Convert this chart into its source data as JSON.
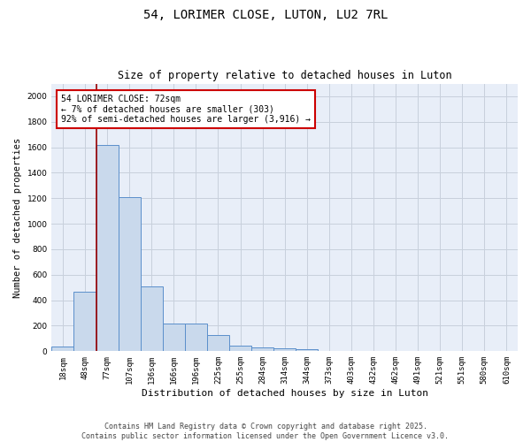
{
  "title": "54, LORIMER CLOSE, LUTON, LU2 7RL",
  "subtitle": "Size of property relative to detached houses in Luton",
  "xlabel": "Distribution of detached houses by size in Luton",
  "ylabel": "Number of detached properties",
  "bin_labels": [
    "18sqm",
    "48sqm",
    "77sqm",
    "107sqm",
    "136sqm",
    "166sqm",
    "196sqm",
    "225sqm",
    "255sqm",
    "284sqm",
    "314sqm",
    "344sqm",
    "373sqm",
    "403sqm",
    "432sqm",
    "462sqm",
    "491sqm",
    "521sqm",
    "551sqm",
    "580sqm",
    "610sqm"
  ],
  "bar_values": [
    35,
    465,
    1620,
    1210,
    510,
    215,
    215,
    130,
    45,
    30,
    20,
    15,
    0,
    0,
    0,
    0,
    0,
    0,
    0,
    0,
    0
  ],
  "bar_color": "#c9d9ec",
  "bar_edge_color": "#5b8fcb",
  "vline_color": "#990000",
  "annotation_text": "54 LORIMER CLOSE: 72sqm\n← 7% of detached houses are smaller (303)\n92% of semi-detached houses are larger (3,916) →",
  "annotation_box_color": "#ffffff",
  "annotation_box_edge": "#cc0000",
  "ylim": [
    0,
    2100
  ],
  "yticks": [
    0,
    200,
    400,
    600,
    800,
    1000,
    1200,
    1400,
    1600,
    1800,
    2000
  ],
  "grid_color": "#c8d0dc",
  "bg_color": "#e8eef8",
  "footer_line1": "Contains HM Land Registry data © Crown copyright and database right 2025.",
  "footer_line2": "Contains public sector information licensed under the Open Government Licence v3.0.",
  "title_fontsize": 10,
  "subtitle_fontsize": 8.5,
  "xlabel_fontsize": 8,
  "ylabel_fontsize": 7.5,
  "tick_fontsize": 6.5,
  "annotation_fontsize": 7,
  "footer_fontsize": 6
}
